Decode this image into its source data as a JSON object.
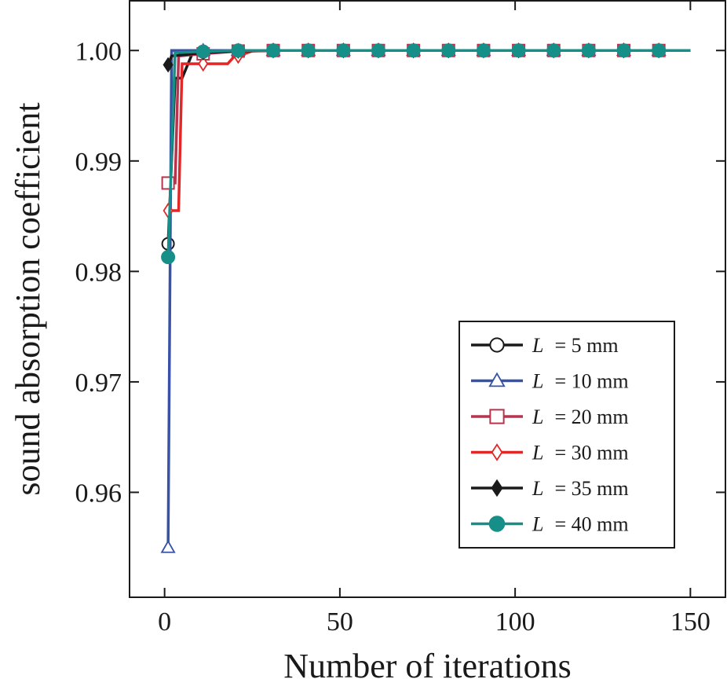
{
  "chart_data": {
    "type": "line",
    "title": "",
    "xlabel": "Number of iterations",
    "ylabel": "sound absorption coefficient",
    "xlim": [
      -10,
      160
    ],
    "ylim": [
      0.9505,
      1.0045
    ],
    "xticks": [
      0,
      50,
      100,
      150
    ],
    "xtick_labels": [
      "0",
      "50",
      "100",
      "150"
    ],
    "yticks": [
      0.96,
      0.97,
      0.98,
      0.99,
      1.0
    ],
    "ytick_labels": [
      "0.96",
      "0.97",
      "0.98",
      "0.99",
      "1.00"
    ],
    "legend_position": "bottom-right",
    "series": [
      {
        "name": "L = 5 mm",
        "label_var": "L",
        "label_rest": "= 5 mm",
        "color": "#1a1a1a",
        "marker": "circle-open",
        "x": [
          1,
          3,
          5,
          8,
          11,
          21,
          31,
          41,
          51,
          61,
          71,
          81,
          91,
          101,
          111,
          121,
          131,
          141,
          150
        ],
        "y": [
          0.9825,
          0.9975,
          0.9975,
          0.9998,
          0.9999,
          0.99995,
          1.0,
          1.0,
          1.0,
          1.0,
          1.0,
          1.0,
          1.0,
          1.0,
          1.0,
          1.0,
          1.0,
          1.0,
          1.0
        ],
        "marker_x": [
          1,
          11,
          21,
          31,
          41,
          51,
          61,
          71,
          81,
          91,
          101,
          111,
          121,
          131,
          141
        ]
      },
      {
        "name": "L = 10 mm",
        "label_var": "L",
        "label_rest": "= 10 mm",
        "color": "#3752a6",
        "marker": "triangle-open",
        "x": [
          1,
          2,
          11,
          21,
          31,
          41,
          51,
          61,
          71,
          81,
          91,
          101,
          111,
          121,
          131,
          141,
          150
        ],
        "y": [
          0.955,
          1.0,
          1.0,
          1.0,
          1.0,
          1.0,
          1.0,
          1.0,
          1.0,
          1.0,
          1.0,
          1.0,
          1.0,
          1.0,
          1.0,
          1.0,
          1.0
        ],
        "marker_x": [
          1,
          11,
          21,
          31,
          41,
          51,
          61,
          71,
          81,
          91,
          101,
          111,
          121,
          131,
          141
        ]
      },
      {
        "name": "L = 20 mm",
        "label_var": "L",
        "label_rest": "= 20 mm",
        "color": "#b8334d",
        "marker": "square-open",
        "x": [
          1,
          3,
          4,
          11,
          21,
          31,
          41,
          51,
          61,
          71,
          81,
          91,
          101,
          111,
          121,
          131,
          141,
          150
        ],
        "y": [
          0.988,
          0.988,
          0.9995,
          0.9997,
          0.99995,
          1.0,
          1.0,
          1.0,
          1.0,
          1.0,
          1.0,
          1.0,
          1.0,
          1.0,
          1.0,
          1.0,
          1.0,
          1.0
        ],
        "marker_x": [
          1,
          11,
          21,
          31,
          41,
          51,
          61,
          71,
          81,
          91,
          101,
          111,
          121,
          131,
          141
        ]
      },
      {
        "name": "L = 30 mm",
        "label_var": "L",
        "label_rest": "= 30 mm",
        "color": "#e02828",
        "marker": "diamond-open",
        "x": [
          1,
          4,
          5,
          11,
          18,
          20,
          21,
          25,
          31,
          41,
          51,
          61,
          71,
          81,
          91,
          101,
          111,
          121,
          131,
          141,
          150
        ],
        "y": [
          0.9855,
          0.9855,
          0.9988,
          0.9988,
          0.9988,
          0.9995,
          0.9995,
          0.99995,
          1.0,
          1.0,
          1.0,
          1.0,
          1.0,
          1.0,
          1.0,
          1.0,
          1.0,
          1.0,
          1.0,
          1.0,
          1.0
        ],
        "marker_x": [
          1,
          11,
          21,
          31,
          41,
          51,
          61,
          71,
          81,
          91,
          101,
          111,
          121,
          131,
          141
        ]
      },
      {
        "name": "L = 35 mm",
        "label_var": "L",
        "label_rest": "= 35 mm",
        "color": "#1a1a1a",
        "marker": "diamond-filled",
        "x": [
          1,
          2,
          11,
          21,
          31,
          41,
          51,
          61,
          71,
          81,
          91,
          101,
          111,
          121,
          131,
          141,
          150
        ],
        "y": [
          0.9987,
          0.9995,
          0.9998,
          0.99995,
          1.0,
          1.0,
          1.0,
          1.0,
          1.0,
          1.0,
          1.0,
          1.0,
          1.0,
          1.0,
          1.0,
          1.0,
          1.0
        ],
        "marker_x": [
          1,
          11,
          21,
          31,
          41,
          51,
          61,
          71,
          81,
          91,
          101,
          111,
          121,
          131,
          141
        ]
      },
      {
        "name": "L = 40 mm",
        "label_var": "L",
        "label_rest": "= 40 mm",
        "color": "#168f88",
        "marker": "circle-filled",
        "x": [
          1,
          3,
          11,
          21,
          31,
          41,
          51,
          61,
          71,
          81,
          91,
          101,
          111,
          121,
          131,
          141,
          150
        ],
        "y": [
          0.9813,
          0.9998,
          0.9999,
          1.0,
          1.0,
          1.0,
          1.0,
          1.0,
          1.0,
          1.0,
          1.0,
          1.0,
          1.0,
          1.0,
          1.0,
          1.0,
          1.0
        ],
        "marker_x": [
          1,
          11,
          21,
          31,
          41,
          51,
          61,
          71,
          81,
          91,
          101,
          111,
          121,
          131,
          141
        ]
      }
    ]
  }
}
